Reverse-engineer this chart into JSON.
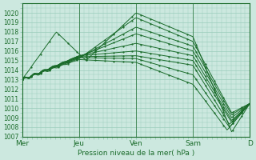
{
  "title": "",
  "xlabel": "Pression niveau de la mer( hPa )",
  "ylabel": "",
  "background_color": "#cce8df",
  "plot_bg_color": "#cce8df",
  "grid_color": "#99ccbb",
  "line_color": "#1a6b2a",
  "ylim": [
    1007,
    1021
  ],
  "yticks": [
    1007,
    1008,
    1009,
    1010,
    1011,
    1012,
    1013,
    1014,
    1015,
    1016,
    1017,
    1018,
    1019,
    1020
  ],
  "day_labels": [
    "Mer",
    "Jeu",
    "Ven",
    "Sam",
    "D"
  ],
  "day_positions": [
    0,
    0.25,
    0.5,
    0.75,
    1.0
  ],
  "n_days": 5,
  "figsize": [
    3.2,
    2.0
  ],
  "dpi": 100
}
